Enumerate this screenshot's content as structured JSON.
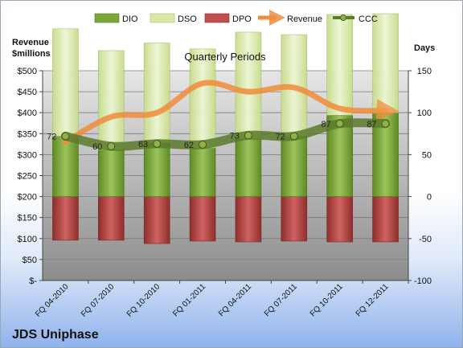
{
  "chart_data": {
    "type": "bar",
    "title": "Quarterly Periods",
    "company": "JDS Uniphase",
    "left_axis_label": [
      "Revenue",
      "$millions"
    ],
    "right_axis_label": "Days",
    "legend_position": "top",
    "grid": true,
    "categories": [
      "FQ 04-2010",
      "FQ 07-2010",
      "FQ 10-2010",
      "FQ 01-2011",
      "FQ 04-2011",
      "FQ 07-2011",
      "FQ 10-2011",
      "FQ 12-2011"
    ],
    "left_axis": {
      "min": 0,
      "max": 500,
      "step": 50,
      "tick_labels": [
        "$-",
        "$50",
        "$100",
        "$150",
        "$200",
        "$250",
        "$300",
        "$350",
        "$400",
        "$450",
        "$500"
      ]
    },
    "right_axis": {
      "min": -100,
      "max": 150,
      "step": 50,
      "tick_labels": [
        "-100",
        "-50",
        "0",
        "50",
        "100",
        "150"
      ]
    },
    "series": [
      {
        "name": "DIO",
        "axis": "right",
        "color": "#7aa63a",
        "values": [
          72,
          56,
          64,
          58,
          69,
          72,
          97,
          100
        ]
      },
      {
        "name": "DSO",
        "axis": "right",
        "color": "#d8e8a8",
        "values": [
          128,
          118,
          119,
          118,
          127,
          121,
          120,
          118
        ]
      },
      {
        "name": "DPO",
        "axis": "right",
        "color": "#c0504d",
        "values": [
          -52,
          -52,
          -56,
          -53,
          -54,
          -53,
          -54,
          -54
        ]
      },
      {
        "name": "Revenue",
        "axis": "left",
        "color": "#f08c3c",
        "values": [
          330,
          390,
          400,
          470,
          450,
          460,
          410,
          405
        ]
      },
      {
        "name": "CCC",
        "axis": "right",
        "color": "#5b7a2a",
        "values": [
          72,
          60,
          63,
          62,
          73,
          72,
          87,
          87
        ]
      }
    ],
    "data_labels_ccc": [
      "72",
      "60",
      "63",
      "62",
      "73",
      "72",
      "87",
      "87"
    ]
  }
}
